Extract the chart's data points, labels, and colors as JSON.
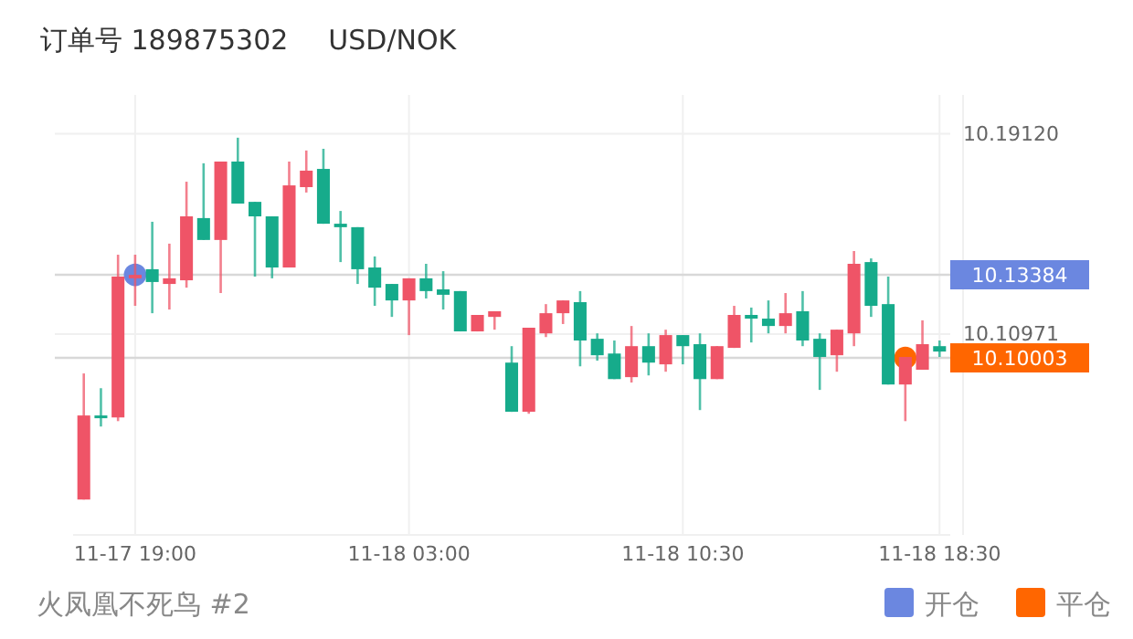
{
  "chart_data": {
    "type": "candlestick",
    "title": "订单号 189875302",
    "subtitle": "USD/NOK",
    "annotations": [
      "火凤凰不死鸟 #2"
    ],
    "categories": [
      null,
      null,
      null,
      "11-17 19:00",
      null,
      null,
      null,
      null,
      null,
      null,
      null,
      null,
      null,
      null,
      null,
      null,
      null,
      null,
      null,
      "11-18 03:00",
      null,
      null,
      null,
      null,
      null,
      null,
      null,
      null,
      null,
      null,
      null,
      null,
      null,
      null,
      null,
      "11-18 10:30",
      null,
      null,
      null,
      null,
      null,
      null,
      null,
      null,
      null,
      null,
      null,
      null,
      null,
      null,
      "11-18 18:30"
    ],
    "ohlc": [
      [
        10.0424,
        10.0937,
        10.0424,
        10.0766
      ],
      [
        10.0766,
        10.0877,
        10.0721,
        10.0758
      ],
      [
        10.0758,
        10.142,
        10.0743,
        10.1331
      ],
      [
        10.1324,
        10.142,
        10.1212,
        10.1338
      ],
      [
        10.1361,
        10.1554,
        10.1182,
        10.1309
      ],
      [
        10.1301,
        10.1465,
        10.1197,
        10.1324
      ],
      [
        10.1316,
        10.1717,
        10.1286,
        10.1576
      ],
      [
        10.1569,
        10.1792,
        10.148,
        10.148
      ],
      [
        10.148,
        10.1799,
        10.1264,
        10.1799
      ],
      [
        10.1799,
        10.1896,
        10.1628,
        10.1628
      ],
      [
        10.1635,
        10.1635,
        10.1331,
        10.1576
      ],
      [
        10.1576,
        10.1576,
        10.1324,
        10.1368
      ],
      [
        10.1368,
        10.1799,
        10.1368,
        10.1702
      ],
      [
        10.1695,
        10.1844,
        10.1673,
        10.1762
      ],
      [
        10.1769,
        10.1851,
        10.1546,
        10.1546
      ],
      [
        10.1546,
        10.1598,
        10.139,
        10.1532
      ],
      [
        10.1532,
        10.1532,
        10.1301,
        10.1361
      ],
      [
        10.1368,
        10.1413,
        10.1212,
        10.1286
      ],
      [
        10.1301,
        10.1301,
        10.1167,
        10.1234
      ],
      [
        10.1234,
        10.1324,
        10.1093,
        10.1324
      ],
      [
        10.1324,
        10.1383,
        10.1242,
        10.1272
      ],
      [
        10.1279,
        10.1353,
        10.1197,
        10.1257
      ],
      [
        10.1272,
        10.1272,
        10.1108,
        10.1108
      ],
      [
        10.1108,
        10.1175,
        10.1108,
        10.1175
      ],
      [
        10.1167,
        10.119,
        10.1115,
        10.119
      ],
      [
        10.0981,
        10.1048,
        10.0781,
        10.0781
      ],
      [
        10.0781,
        10.1123,
        10.0773,
        10.1123
      ],
      [
        10.11,
        10.1219,
        10.1085,
        10.1182
      ],
      [
        10.1182,
        10.1234,
        10.1138,
        10.1234
      ],
      [
        10.1227,
        10.1272,
        10.0966,
        10.1071
      ],
      [
        10.1078,
        10.11,
        10.0989,
        10.1011
      ],
      [
        10.1018,
        10.1071,
        10.0914,
        10.0914
      ],
      [
        10.0922,
        10.113,
        10.09,
        10.1048
      ],
      [
        10.1048,
        10.11,
        10.0929,
        10.0981
      ],
      [
        10.0974,
        10.1115,
        10.0944,
        10.1093
      ],
      [
        10.1093,
        10.1093,
        10.0974,
        10.1048
      ],
      [
        10.1056,
        10.11,
        10.0788,
        10.0914
      ],
      [
        10.0914,
        10.1048,
        10.0914,
        10.1048
      ],
      [
        10.1041,
        10.1212,
        10.1041,
        10.1175
      ],
      [
        10.1175,
        10.1205,
        10.1063,
        10.116
      ],
      [
        10.116,
        10.1234,
        10.11,
        10.113
      ],
      [
        10.113,
        10.1264,
        10.11,
        10.1182
      ],
      [
        10.119,
        10.1272,
        10.1048,
        10.1071
      ],
      [
        10.1078,
        10.11,
        10.087,
        10.1004
      ],
      [
        10.1011,
        10.1115,
        10.0944,
        10.1115
      ],
      [
        10.11,
        10.1435,
        10.1048,
        10.1383
      ],
      [
        10.139,
        10.1405,
        10.1167,
        10.1212
      ],
      [
        10.1219,
        10.1331,
        10.0892,
        10.0892
      ],
      [
        10.0892,
        10.1004,
        10.0743,
        10.1004
      ],
      [
        10.0952,
        10.1153,
        10.0952,
        10.1056
      ],
      [
        10.1048,
        10.1071,
        10.1004,
        10.1026
      ]
    ],
    "colors": [
      "#ef5467",
      "#16ab8b",
      "#ef5467",
      "#ef5467",
      "#16ab8b",
      "#ef5467",
      "#ef5467",
      "#16ab8b",
      "#ef5467",
      "#16ab8b",
      "#16ab8b",
      "#16ab8b",
      "#ef5467",
      "#ef5467",
      "#16ab8b",
      "#16ab8b",
      "#16ab8b",
      "#16ab8b",
      "#16ab8b",
      "#ef5467",
      "#16ab8b",
      "#16ab8b",
      "#16ab8b",
      "#ef5467",
      "#ef5467",
      "#16ab8b",
      "#ef5467",
      "#ef5467",
      "#ef5467",
      "#16ab8b",
      "#16ab8b",
      "#16ab8b",
      "#ef5467",
      "#16ab8b",
      "#ef5467",
      "#16ab8b",
      "#16ab8b",
      "#ef5467",
      "#ef5467",
      "#16ab8b",
      "#16ab8b",
      "#ef5467",
      "#16ab8b",
      "#16ab8b",
      "#ef5467",
      "#ef5467",
      "#16ab8b",
      "#16ab8b",
      "#ef5467",
      "#ef5467",
      "#16ab8b"
    ],
    "series": [
      {
        "name": "开仓",
        "type": "scatter",
        "color": "#6b87e0",
        "values": [
          null,
          null,
          null,
          10.1338,
          null,
          null,
          null,
          null,
          null,
          null,
          null,
          null,
          null,
          null,
          null,
          null,
          null,
          null,
          null,
          null,
          null,
          null,
          null,
          null,
          null,
          null,
          null,
          null,
          null,
          null,
          null,
          null,
          null,
          null,
          null,
          null,
          null,
          null,
          null,
          null,
          null,
          null,
          null,
          null,
          null,
          null,
          null,
          null,
          null,
          null,
          null
        ]
      },
      {
        "name": "平仓",
        "type": "scatter",
        "color": "#ff6600",
        "values": [
          null,
          null,
          null,
          null,
          null,
          null,
          null,
          null,
          null,
          null,
          null,
          null,
          null,
          null,
          null,
          null,
          null,
          null,
          null,
          null,
          null,
          null,
          null,
          null,
          null,
          null,
          null,
          null,
          null,
          null,
          null,
          null,
          null,
          null,
          null,
          null,
          null,
          null,
          null,
          null,
          null,
          null,
          null,
          null,
          null,
          null,
          null,
          null,
          10.1,
          null,
          null
        ]
      }
    ],
    "ylim": [
      10.028,
      10.207
    ],
    "yticks": [
      {
        "value": 10.1912,
        "label": "10.19120"
      },
      {
        "value": 10.10971,
        "label": "10.10971"
      }
    ],
    "ref_lines": [
      {
        "axis": "y",
        "value": 10.13384,
        "label": "10.13384"
      },
      {
        "axis": "y",
        "value": 10.10003,
        "label": "10.10003"
      }
    ],
    "grid": true,
    "legend": "bottom right",
    "marker": "circle"
  }
}
